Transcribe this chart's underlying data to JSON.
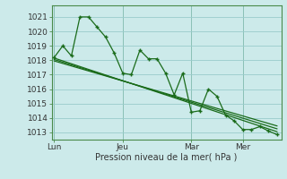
{
  "background_color": "#cceaea",
  "grid_color": "#99cccc",
  "line_color": "#1a6b1a",
  "ylabel_range": [
    1012.5,
    1021.8
  ],
  "yticks": [
    1013,
    1014,
    1015,
    1016,
    1017,
    1018,
    1019,
    1020,
    1021
  ],
  "xlabel": "Pression niveau de la mer( hPa )",
  "xtick_labels": [
    "Lun",
    "Jeu",
    "Mar",
    "Mer"
  ],
  "main_series_x": [
    0,
    1,
    2,
    3,
    4,
    5,
    6,
    7,
    8,
    9,
    10,
    11,
    12,
    13,
    14,
    15,
    16,
    17,
    18,
    19,
    20,
    21,
    22,
    23,
    24,
    25,
    26
  ],
  "main_series_y": [
    1018.2,
    1019.0,
    1018.3,
    1021.0,
    1021.0,
    1020.3,
    1019.6,
    1018.5,
    1017.1,
    1017.0,
    1018.7,
    1018.1,
    1018.1,
    1017.1,
    1015.6,
    1017.1,
    1014.4,
    1014.5,
    1016.0,
    1015.5,
    1014.2,
    1013.8,
    1013.2,
    1013.2,
    1013.4,
    1013.1,
    1012.85
  ],
  "trend_lines": [
    {
      "x": [
        0,
        26
      ],
      "y": [
        1018.15,
        1013.05
      ]
    },
    {
      "x": [
        0,
        26
      ],
      "y": [
        1018.05,
        1013.25
      ]
    },
    {
      "x": [
        0,
        26
      ],
      "y": [
        1017.95,
        1013.45
      ]
    }
  ],
  "xtick_positions": [
    0,
    8,
    16,
    22
  ],
  "xlim": [
    -0.3,
    26.5
  ],
  "figsize": [
    3.2,
    2.0
  ],
  "dpi": 100
}
